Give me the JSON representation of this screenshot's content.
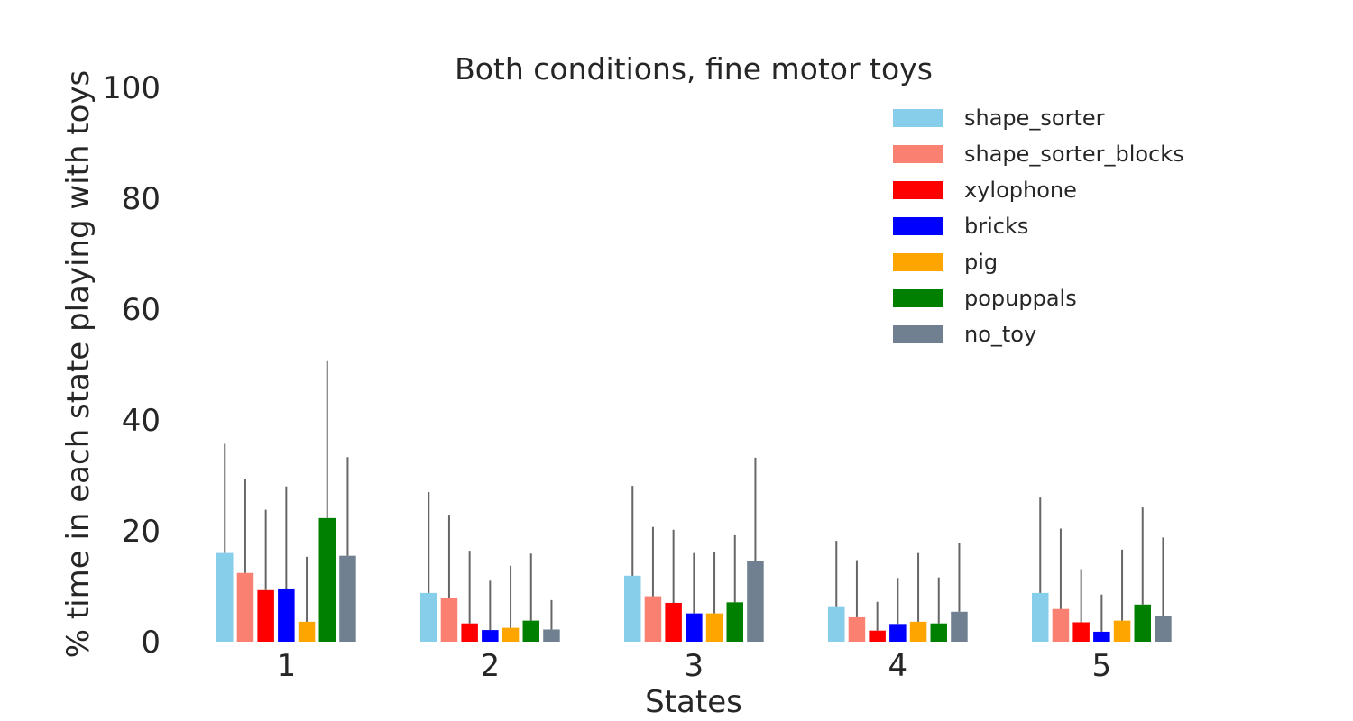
{
  "chart_data": {
    "type": "bar",
    "title": "Both conditions, fine motor toys",
    "xlabel": "States",
    "ylabel": "% time in each state playing with toys",
    "ylim": [
      0,
      100
    ],
    "yticks": [
      0,
      20,
      40,
      60,
      80,
      100
    ],
    "grid": false,
    "legend_position": "top-right",
    "categories": [
      "1",
      "2",
      "3",
      "4",
      "5"
    ],
    "series": [
      {
        "name": "shape_sorter",
        "color": "#87ceeb",
        "values": [
          16.0,
          8.8,
          11.9,
          6.4,
          8.8
        ],
        "error": [
          19.7,
          18.2,
          16.2,
          11.8,
          17.2
        ]
      },
      {
        "name": "shape_sorter_blocks",
        "color": "#fa8072",
        "values": [
          12.4,
          7.9,
          8.2,
          4.4,
          5.9
        ],
        "error": [
          17.0,
          15.0,
          12.5,
          10.3,
          14.5
        ]
      },
      {
        "name": "xylophone",
        "color": "#ff0000",
        "values": [
          9.3,
          3.3,
          7.0,
          2.0,
          3.5
        ],
        "error": [
          14.5,
          13.1,
          13.2,
          5.2,
          9.6
        ]
      },
      {
        "name": "bricks",
        "color": "#0000ff",
        "values": [
          9.6,
          2.1,
          5.1,
          3.2,
          1.8
        ],
        "error": [
          18.4,
          8.9,
          10.9,
          8.3,
          6.7
        ]
      },
      {
        "name": "pig",
        "color": "#ffa500",
        "values": [
          3.6,
          2.5,
          5.1,
          3.6,
          3.8
        ],
        "error": [
          11.7,
          11.2,
          11.0,
          12.4,
          12.8
        ]
      },
      {
        "name": "popuppals",
        "color": "#008000",
        "values": [
          22.3,
          3.8,
          7.1,
          3.3,
          6.7
        ],
        "error": [
          28.3,
          12.1,
          12.1,
          8.3,
          17.5
        ]
      },
      {
        "name": "no_toy",
        "color": "#708090",
        "values": [
          15.5,
          2.2,
          14.5,
          5.4,
          4.6
        ],
        "error": [
          17.8,
          5.3,
          18.7,
          12.4,
          14.2
        ]
      }
    ]
  }
}
